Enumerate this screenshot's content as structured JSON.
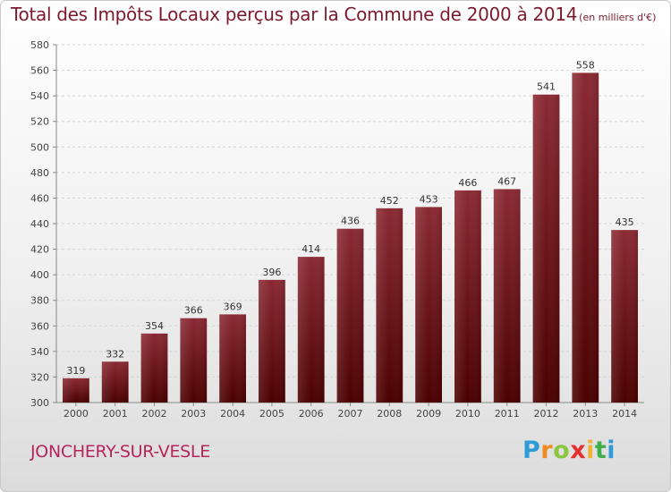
{
  "title": "Total des Impôts Locaux perçus par la Commune de 2000 à 2014",
  "title_unit": "(en milliers d'€)",
  "commune": "JONCHERY-SUR-VESLE",
  "logo": {
    "letters": [
      "P",
      "r",
      "o",
      "x",
      "i",
      "t",
      "i"
    ],
    "colors": [
      "#2f9bd6",
      "#f08a1c",
      "#8cc63f",
      "#e6312e",
      "#f2b233",
      "#3fae49",
      "#2f9bd6"
    ]
  },
  "colors": {
    "bar_top": "#8a2a33",
    "bar_bottom": "#4a0000",
    "title": "#7b1a2e",
    "commune": "#b5265a"
  },
  "chart_data": {
    "type": "bar",
    "categories": [
      "2000",
      "2001",
      "2002",
      "2003",
      "2004",
      "2005",
      "2006",
      "2007",
      "2008",
      "2009",
      "2010",
      "2011",
      "2012",
      "2013",
      "2014"
    ],
    "values": [
      319,
      332,
      354,
      366,
      369,
      396,
      414,
      436,
      452,
      453,
      466,
      467,
      541,
      558,
      435
    ],
    "yticks": [
      300,
      320,
      340,
      360,
      380,
      400,
      420,
      440,
      460,
      480,
      500,
      520,
      540,
      560,
      580
    ],
    "ylim": [
      300,
      580
    ],
    "grid": true,
    "title": "Total des Impôts Locaux perçus par la Commune de 2000 à 2014",
    "xlabel": "",
    "ylabel": ""
  }
}
